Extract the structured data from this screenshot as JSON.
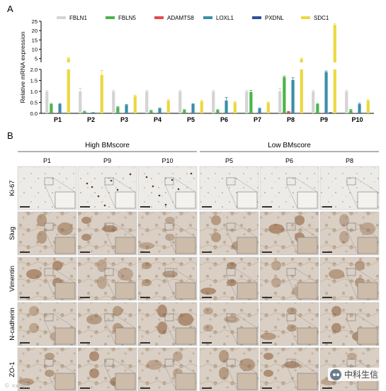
{
  "panel_a": {
    "label": "A"
  },
  "panel_b": {
    "label": "B"
  },
  "chart_data": {
    "type": "bar",
    "ylabel": "Relative mRNA expression",
    "categories": [
      "P1",
      "P2",
      "P3",
      "P4",
      "P5",
      "P6",
      "P7",
      "P8",
      "P9",
      "P10"
    ],
    "y_axis_broken": true,
    "lower_range": [
      0,
      2.0
    ],
    "upper_range": [
      3,
      25
    ],
    "lower_ticks": [
      "0.0",
      "0.5",
      "1.0",
      "1.5",
      "2.0"
    ],
    "upper_ticks": [
      "5",
      "10",
      "15",
      "20",
      "25"
    ],
    "legend_position": "top",
    "series": [
      {
        "name": "FBLN1",
        "color": "#d4d4d4",
        "values": [
          1.0,
          1.0,
          1.0,
          1.0,
          1.0,
          1.0,
          1.0,
          1.0,
          1.0,
          1.0
        ],
        "errors": [
          0.05,
          0.15,
          0.05,
          0.05,
          0.05,
          0.05,
          0.05,
          0.15,
          0.05,
          0.05
        ]
      },
      {
        "name": "FBLN5",
        "color": "#4ab54a",
        "values": [
          0.42,
          0.08,
          0.28,
          0.12,
          0.15,
          0.15,
          0.97,
          1.65,
          0.42,
          0.15
        ],
        "errors": [
          0.03,
          0.02,
          0.03,
          0.02,
          0.02,
          0.02,
          0.08,
          0.05,
          0.03,
          0.03
        ]
      },
      {
        "name": "ADAMTS8",
        "color": "#e24a4a",
        "values": [
          0.02,
          0.01,
          0.01,
          0.01,
          0.01,
          0.01,
          0.01,
          0.08,
          0.01,
          0.01
        ],
        "errors": [
          0,
          0,
          0,
          0,
          0,
          0,
          0,
          0.01,
          0,
          0
        ]
      },
      {
        "name": "LOXL1",
        "color": "#3a8fa8",
        "values": [
          0.42,
          0.03,
          0.38,
          0.22,
          0.42,
          0.58,
          0.22,
          1.52,
          1.88,
          0.42
        ],
        "errors": [
          0.03,
          0.01,
          0.02,
          0.02,
          0.02,
          0.15,
          0.02,
          0.1,
          0.05,
          0.04
        ]
      },
      {
        "name": "PXDNL",
        "color": "#2f4f9a",
        "values": [
          0.0,
          0.0,
          0.0,
          0.0,
          0.0,
          0.0,
          0.0,
          0.0,
          0.05,
          0.0
        ],
        "errors": [
          0,
          0,
          0,
          0,
          0,
          0,
          0,
          0,
          0,
          0
        ]
      },
      {
        "name": "SDC1",
        "color": "#ecd840",
        "values": [
          5.0,
          1.75,
          0.78,
          0.58,
          0.55,
          0.5,
          0.48,
          4.8,
          23.0,
          0.58
        ],
        "errors": [
          0.5,
          0.2,
          0.05,
          0.05,
          0.04,
          0.04,
          0.04,
          0.5,
          0.6,
          0.05
        ]
      }
    ]
  },
  "ihc": {
    "groups": [
      {
        "label": "High BMscore",
        "samples": [
          "P1",
          "P9",
          "P10"
        ]
      },
      {
        "label": "Low BMscore",
        "samples": [
          "P5",
          "P6",
          "P8"
        ]
      }
    ],
    "rows": [
      "Ki-67",
      "Slug",
      "Vimentin",
      "N-cadherin",
      "ZO-1"
    ],
    "stain_color": "#8a5a33",
    "background_color": "#d9cfc4"
  },
  "watermark": {
    "text": "中科生信",
    "icon": "wechat-icon"
  },
  "credit": {
    "text": "© xx试剂"
  }
}
